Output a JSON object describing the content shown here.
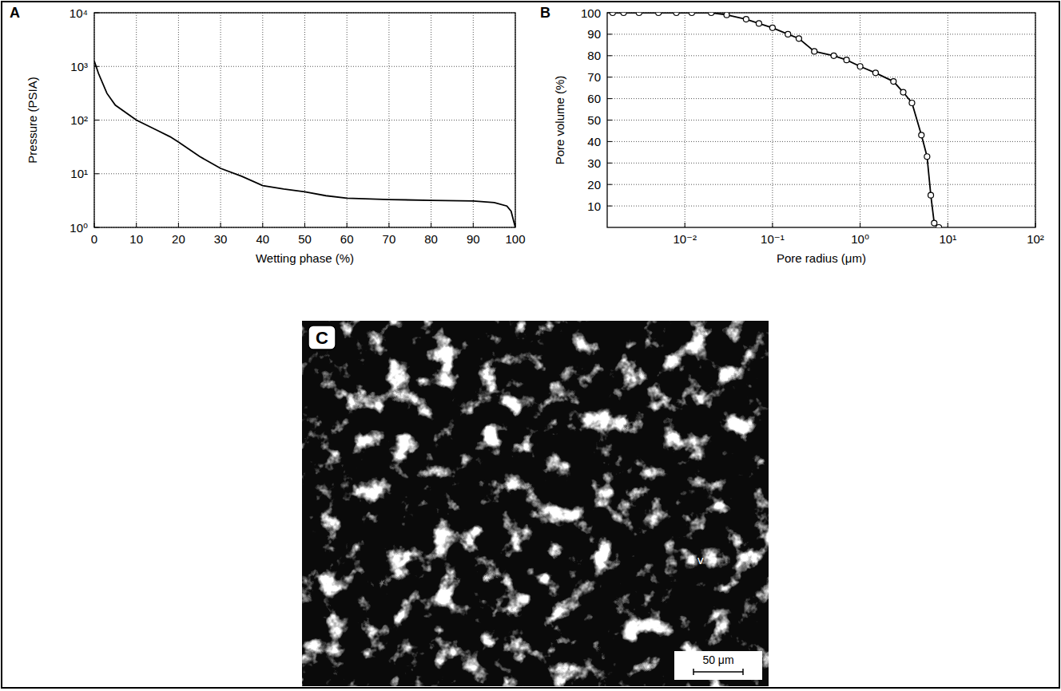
{
  "chart_data": [
    {
      "type": "line",
      "title": "A",
      "x_label": "Wetting phase (%)",
      "y_label": "Pressure (PSIA)",
      "log": "y",
      "grid": true,
      "color": "#000000",
      "line_style": "solid",
      "xlim": [
        0,
        100
      ],
      "xticks": [
        0,
        10,
        20,
        30,
        40,
        50,
        60,
        70,
        80,
        90,
        100
      ],
      "ylim": [
        1,
        10000
      ],
      "yticks": [
        {
          "value": 1,
          "label": "10⁰"
        },
        {
          "value": 10,
          "label": "10¹"
        },
        {
          "value": 100,
          "label": "10²"
        },
        {
          "value": 1000,
          "label": "10³"
        },
        {
          "value": 10000,
          "label": "10⁴"
        }
      ],
      "x": [
        0,
        1,
        3,
        5,
        10,
        15,
        18,
        20,
        25,
        30,
        35,
        40,
        45,
        50,
        55,
        60,
        70,
        80,
        90,
        95,
        98,
        99,
        100
      ],
      "values": [
        1260,
        740,
        316,
        190,
        100,
        64,
        49,
        39,
        21,
        12.6,
        9,
        6,
        5.2,
        4.6,
        3.9,
        3.5,
        3.3,
        3.2,
        3.1,
        2.9,
        2.5,
        2,
        1
      ]
    },
    {
      "type": "line",
      "title": "B",
      "x_label": "Pore radius (μm)",
      "y_label": "Pore volume (%)",
      "log": "x",
      "grid": true,
      "color": "#000000",
      "line_style": "solid",
      "marker": "circle",
      "xlim": [
        0.0013,
        100
      ],
      "xticks": [
        {
          "value": 0.01,
          "label": "10⁻²"
        },
        {
          "value": 0.1,
          "label": "10⁻¹"
        },
        {
          "value": 1,
          "label": "10⁰"
        },
        {
          "value": 10,
          "label": "10¹"
        },
        {
          "value": 100,
          "label": "10²"
        }
      ],
      "ylim": [
        0,
        100
      ],
      "yticks": [
        10,
        20,
        30,
        40,
        50,
        60,
        70,
        80,
        90,
        100
      ],
      "x": [
        0.0015,
        0.002,
        0.003,
        0.005,
        0.008,
        0.012,
        0.02,
        0.03,
        0.05,
        0.07,
        0.1,
        0.15,
        0.2,
        0.3,
        0.5,
        0.7,
        1,
        1.5,
        2.4,
        3.1,
        3.9,
        5,
        5.8,
        6.4,
        7,
        7.9
      ],
      "values": [
        100,
        100,
        100,
        100,
        100,
        100,
        100,
        99,
        97,
        95,
        93,
        90,
        88,
        82,
        80,
        78,
        75,
        72,
        68,
        63,
        58,
        43,
        33,
        15,
        2,
        0
      ]
    }
  ],
  "photo": {
    "label": "C",
    "scale_bar": "50 μm",
    "annotation": "v"
  }
}
